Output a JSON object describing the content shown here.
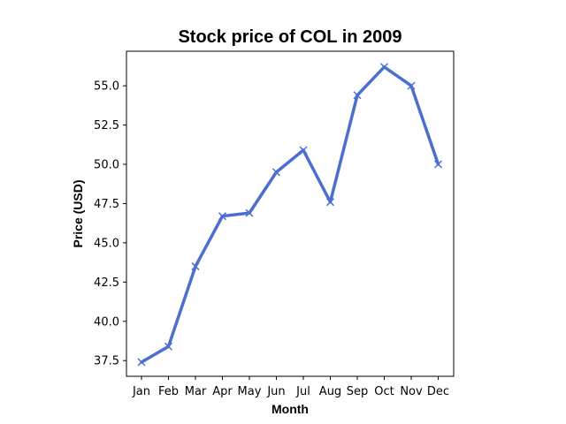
{
  "chart_data": {
    "type": "line",
    "title": "Stock price of COL in 2009",
    "xlabel": "Month",
    "ylabel": "Price (USD)",
    "categories": [
      "Jan",
      "Feb",
      "Mar",
      "Apr",
      "May",
      "Jun",
      "Jul",
      "Aug",
      "Sep",
      "Oct",
      "Nov",
      "Dec"
    ],
    "series": [
      {
        "values": [
          37.4,
          38.4,
          43.5,
          46.7,
          46.9,
          49.5,
          50.9,
          47.6,
          54.4,
          56.2,
          55.0,
          50.0
        ],
        "color": "#4c6fcf",
        "marker": "x"
      }
    ],
    "yticks": [
      "37.5",
      "40.0",
      "42.5",
      "45.0",
      "47.5",
      "50.0",
      "52.5",
      "55.0"
    ],
    "ylim": [
      36.5,
      57.2
    ],
    "grid": false,
    "legend": "none"
  }
}
